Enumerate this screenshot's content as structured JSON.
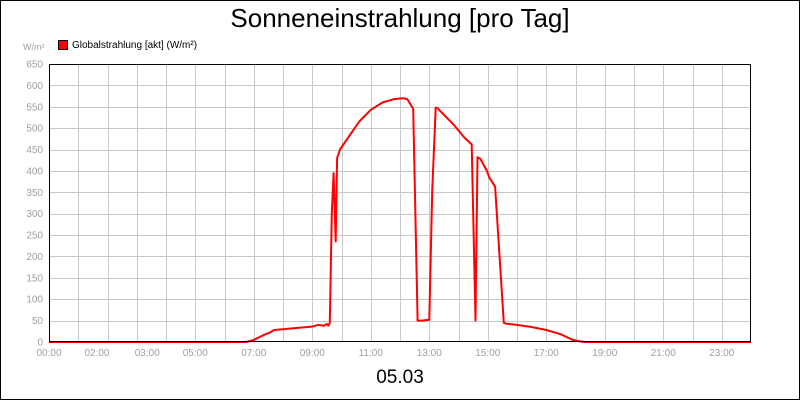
{
  "chart_data": {
    "type": "line",
    "title": "Sonneneinstrahlung [pro Tag]",
    "ylabel": "W/m²",
    "xlabel": "05.03",
    "grid": true,
    "legend_position": "top-left",
    "ylim": [
      0,
      650
    ],
    "xlim": [
      0,
      24
    ],
    "y_ticks": [
      0,
      50,
      100,
      150,
      200,
      250,
      300,
      350,
      400,
      450,
      500,
      550,
      600,
      650
    ],
    "x_ticks": [
      {
        "x": 0,
        "label": "00:00"
      },
      {
        "x": 2,
        "label": "02:00"
      },
      {
        "x": 3,
        "label": "03:00"
      },
      {
        "x": 5,
        "label": "05:00"
      },
      {
        "x": 7,
        "label": "07:00"
      },
      {
        "x": 9,
        "label": "09:00"
      },
      {
        "x": 11,
        "label": "11:00"
      },
      {
        "x": 13,
        "label": "13:00"
      },
      {
        "x": 15,
        "label": "15:00"
      },
      {
        "x": 17,
        "label": "17:00"
      },
      {
        "x": 19,
        "label": "19:00"
      },
      {
        "x": 21,
        "label": "21:00"
      },
      {
        "x": 23,
        "label": "23:00"
      }
    ],
    "series": [
      {
        "name": "Globalstrahlung [akt] (W/m²)",
        "color": "#ff0000",
        "x": [
          0,
          6.75,
          7.0,
          7.3,
          7.55,
          7.7,
          8.0,
          8.5,
          9.0,
          9.2,
          9.4,
          9.5,
          9.55,
          9.6,
          9.67,
          9.73,
          9.8,
          9.85,
          9.9,
          9.95,
          10.25,
          10.6,
          11.0,
          11.4,
          11.8,
          12.1,
          12.25,
          12.45,
          12.6,
          12.68,
          12.75,
          13.0,
          13.1,
          13.22,
          13.3,
          13.35,
          13.55,
          13.85,
          14.2,
          14.45,
          14.58,
          14.65,
          14.75,
          14.85,
          14.97,
          15.05,
          15.25,
          15.55,
          15.62,
          16.0,
          16.5,
          17.0,
          17.5,
          17.9,
          18.1,
          18.3,
          18.5,
          24.0
        ],
        "y": [
          0,
          0,
          5,
          15,
          22,
          28,
          30,
          33,
          36,
          40,
          38,
          42,
          38,
          45,
          300,
          395,
          235,
          430,
          440,
          450,
          480,
          515,
          543,
          560,
          568,
          570,
          568,
          545,
          50,
          50,
          50,
          52,
          352,
          548,
          546,
          542,
          528,
          507,
          478,
          462,
          50,
          432,
          428,
          415,
          400,
          385,
          363,
          45,
          43,
          40,
          35,
          28,
          18,
          5,
          2,
          0,
          0,
          0
        ]
      }
    ]
  }
}
